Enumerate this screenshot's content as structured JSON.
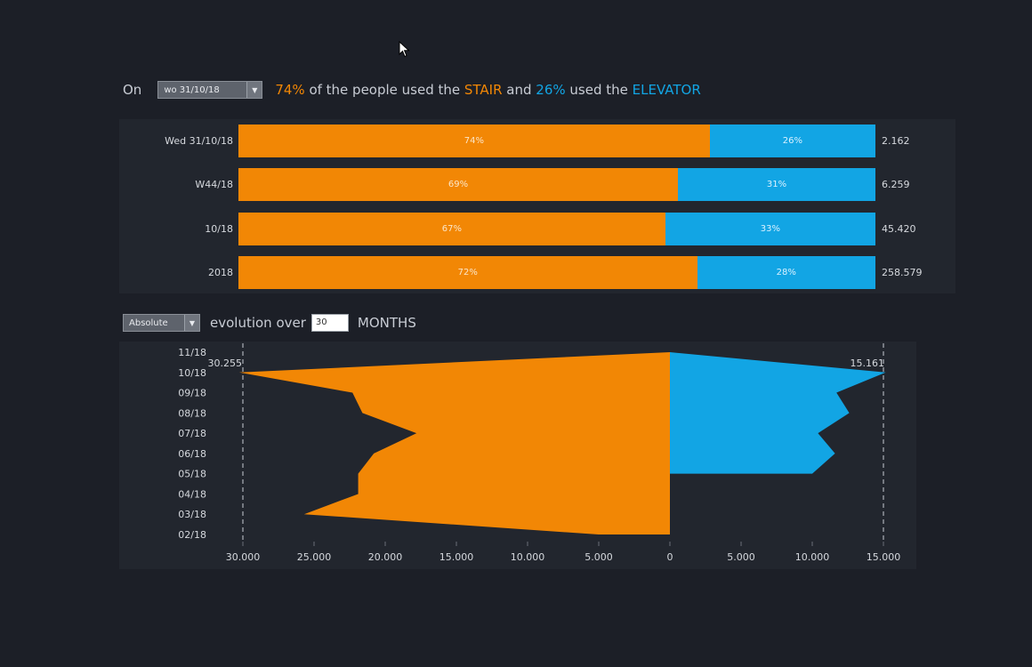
{
  "header": {
    "on_label": "On",
    "date_select_value": "wo 31/10/18",
    "stair_pct": "74%",
    "text_mid1": " of the people used the ",
    "stair_word": "STAIR",
    "text_mid2": " and ",
    "elevator_pct": "26%",
    "text_mid3": " used the ",
    "elevator_word": "ELEVATOR"
  },
  "colors": {
    "stair": "#f28705",
    "elevator": "#12a5e4",
    "background": "#1c1f27",
    "panel": "#22262e"
  },
  "summary_rows": [
    {
      "label": "Wed 31/10/18",
      "stair_pct": 74,
      "elevator_pct": 26,
      "stair_text": "74%",
      "elevator_text": "26%",
      "total": "2.162"
    },
    {
      "label": "W44/18",
      "stair_pct": 69,
      "elevator_pct": 31,
      "stair_text": "69%",
      "elevator_text": "31%",
      "total": "6.259"
    },
    {
      "label": "10/18",
      "stair_pct": 67,
      "elevator_pct": 33,
      "stair_text": "67%",
      "elevator_text": "33%",
      "total": "45.420"
    },
    {
      "label": "2018",
      "stair_pct": 72,
      "elevator_pct": 28,
      "stair_text": "72%",
      "elevator_text": "28%",
      "total": "258.579"
    }
  ],
  "controls": {
    "mode_select_value": "Absolute",
    "evolution_text": "evolution over",
    "months_value": "30",
    "months_text": "MONTHS"
  },
  "chart_data": {
    "type": "area",
    "categories": [
      "11/18",
      "10/18",
      "09/18",
      "08/18",
      "07/18",
      "06/18",
      "05/18",
      "04/18",
      "03/18",
      "02/18"
    ],
    "series": [
      {
        "values": [
          0,
          30255,
          22300,
          21600,
          17800,
          20800,
          21900,
          21900,
          25700,
          5000
        ]
      },
      {
        "values": [
          0,
          15161,
          11700,
          12600,
          10400,
          11600,
          10000,
          0,
          0,
          0
        ]
      }
    ],
    "x_ticks": [
      "30.000",
      "25.000",
      "20.000",
      "15.000",
      "10.000",
      "5.000",
      "0",
      "5.000",
      "10.000",
      "15.000"
    ],
    "x_tick_values": [
      30000,
      25000,
      20000,
      15000,
      10000,
      5000,
      0,
      5000,
      10000,
      15000
    ],
    "stair_max_label": "30.255",
    "elevator_max_label": "15.161",
    "xlim_stair": [
      0,
      30000
    ],
    "xlim_elevator": [
      0,
      15000
    ]
  }
}
